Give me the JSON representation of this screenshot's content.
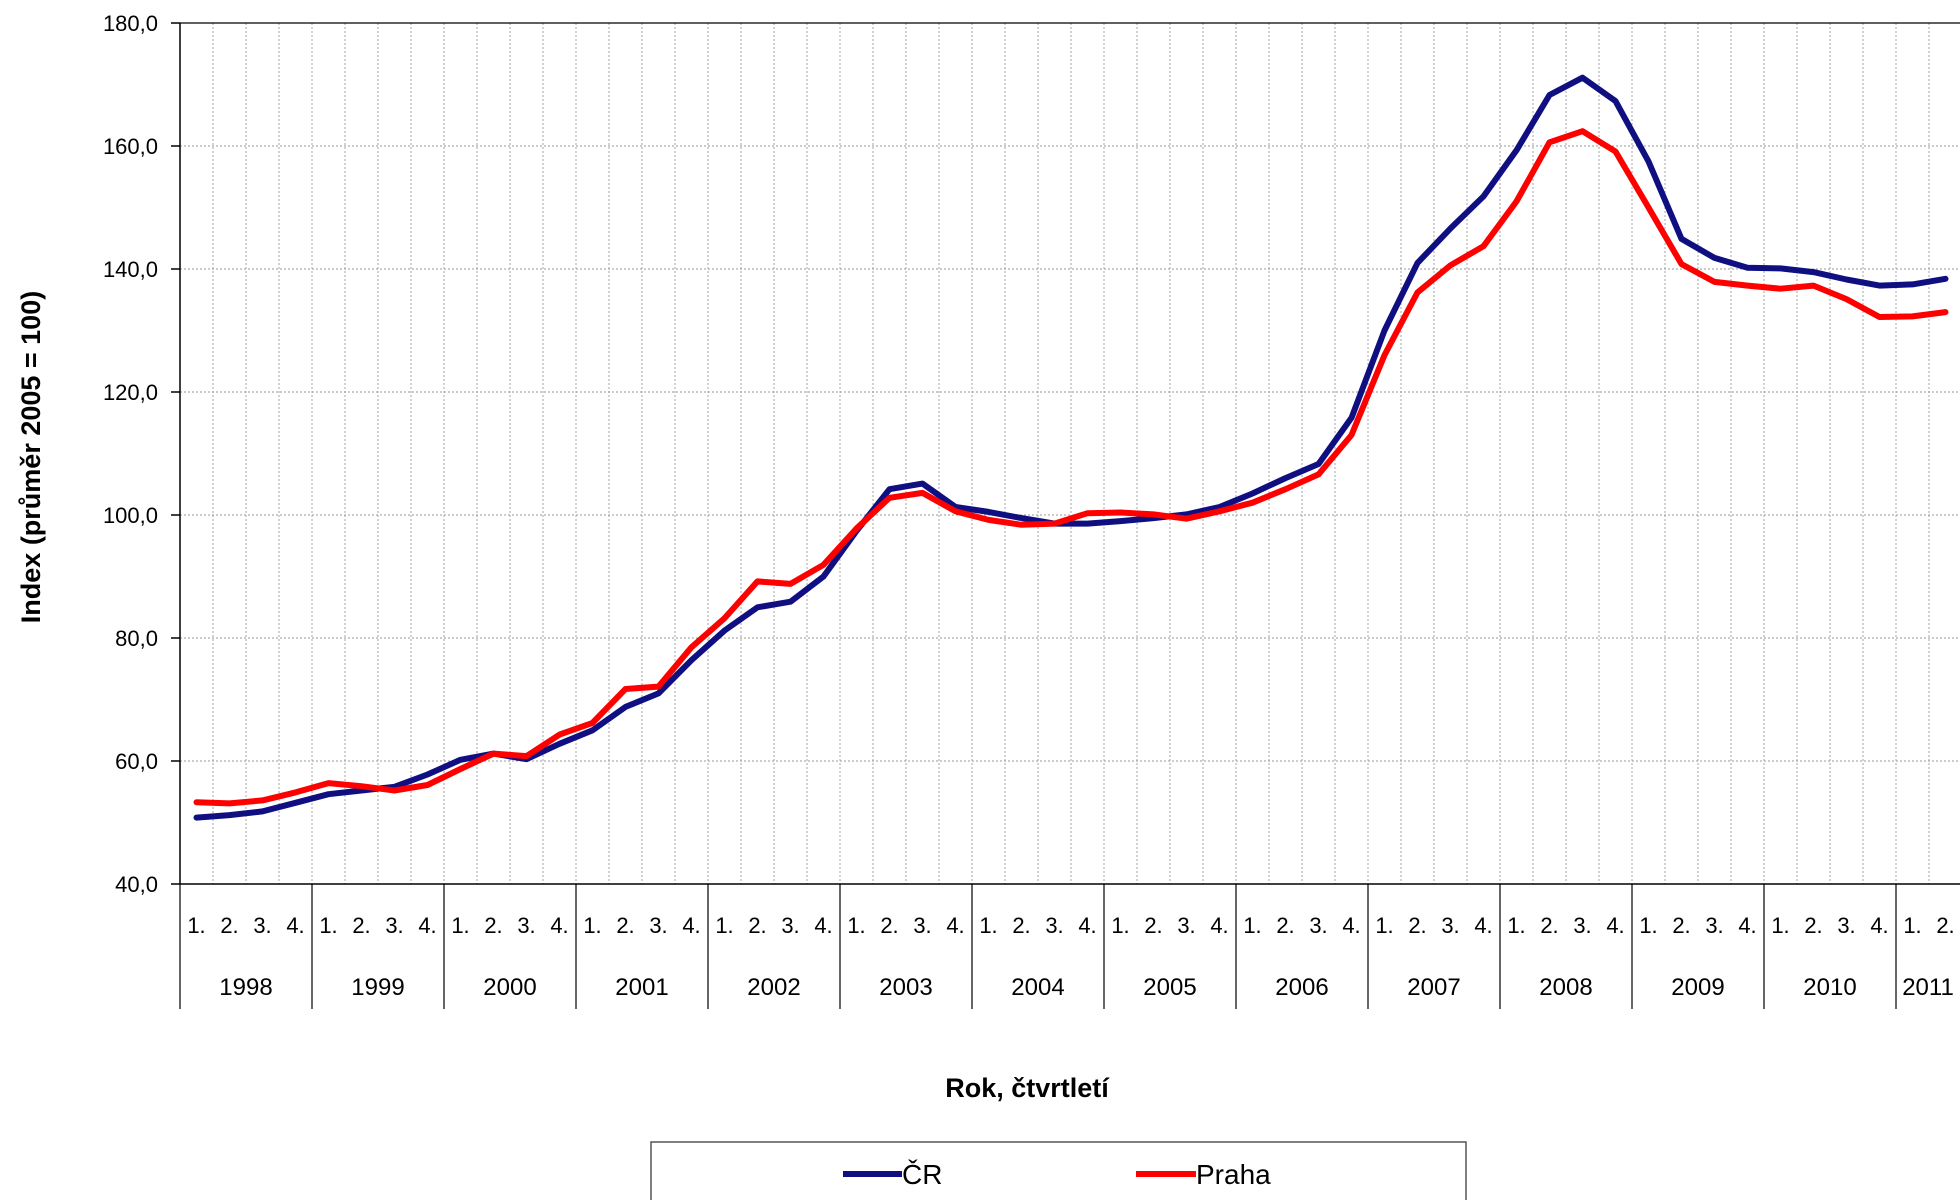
{
  "chart_data": {
    "type": "line",
    "xlabel": "Rok, čtvrtletí",
    "ylabel": "Index (průměr 2005 = 100)",
    "ylim": [
      40,
      180
    ],
    "yticks": [
      "40,0",
      "60,0",
      "80,0",
      "100,0",
      "120,0",
      "140,0",
      "160,0",
      "180,0"
    ],
    "quarter_labels": [
      "1.",
      "2.",
      "3.",
      "4."
    ],
    "years": [
      "1998",
      "1999",
      "2000",
      "2001",
      "2002",
      "2003",
      "2004",
      "2005",
      "2006",
      "2007",
      "2008",
      "2009",
      "2010",
      "2011"
    ],
    "grid": true,
    "legend_position": "bottom",
    "series": [
      {
        "name": "ČR",
        "color": "#0f0f82",
        "values": [
          50.8,
          51.2,
          51.8,
          53.2,
          54.6,
          55.2,
          55.8,
          57.8,
          60.2,
          61.2,
          60.3,
          62.8,
          65.0,
          68.8,
          71.0,
          76.4,
          81.2,
          85.0,
          85.9,
          90.0,
          97.4,
          104.2,
          105.1,
          101.3,
          100.5,
          99.5,
          98.6,
          98.6,
          99.0,
          99.5,
          100.1,
          101.3,
          103.5,
          106.0,
          108.3,
          115.8,
          130.0,
          141.0,
          146.6,
          151.8,
          159.3,
          168.3,
          171.1,
          167.3,
          157.5,
          144.9,
          141.8,
          140.2,
          140.1,
          139.5,
          138.3,
          137.3,
          137.5,
          138.4
        ]
      },
      {
        "name": "Praha",
        "color": "#ff0000",
        "values": [
          53.3,
          53.1,
          53.6,
          54.9,
          56.4,
          55.9,
          55.2,
          56.1,
          58.7,
          61.2,
          60.8,
          64.3,
          66.2,
          71.7,
          72.1,
          78.5,
          83.2,
          89.2,
          88.8,
          91.9,
          97.8,
          102.8,
          103.6,
          100.6,
          99.2,
          98.4,
          98.6,
          100.3,
          100.4,
          100.1,
          99.4,
          100.6,
          102.0,
          104.2,
          106.6,
          113.0,
          126.0,
          136.2,
          140.6,
          143.7,
          151.0,
          160.6,
          162.4,
          159.1,
          150.0,
          140.8,
          137.9,
          137.3,
          136.8,
          137.3,
          135.1,
          132.2,
          132.3,
          133.0
        ]
      }
    ]
  }
}
